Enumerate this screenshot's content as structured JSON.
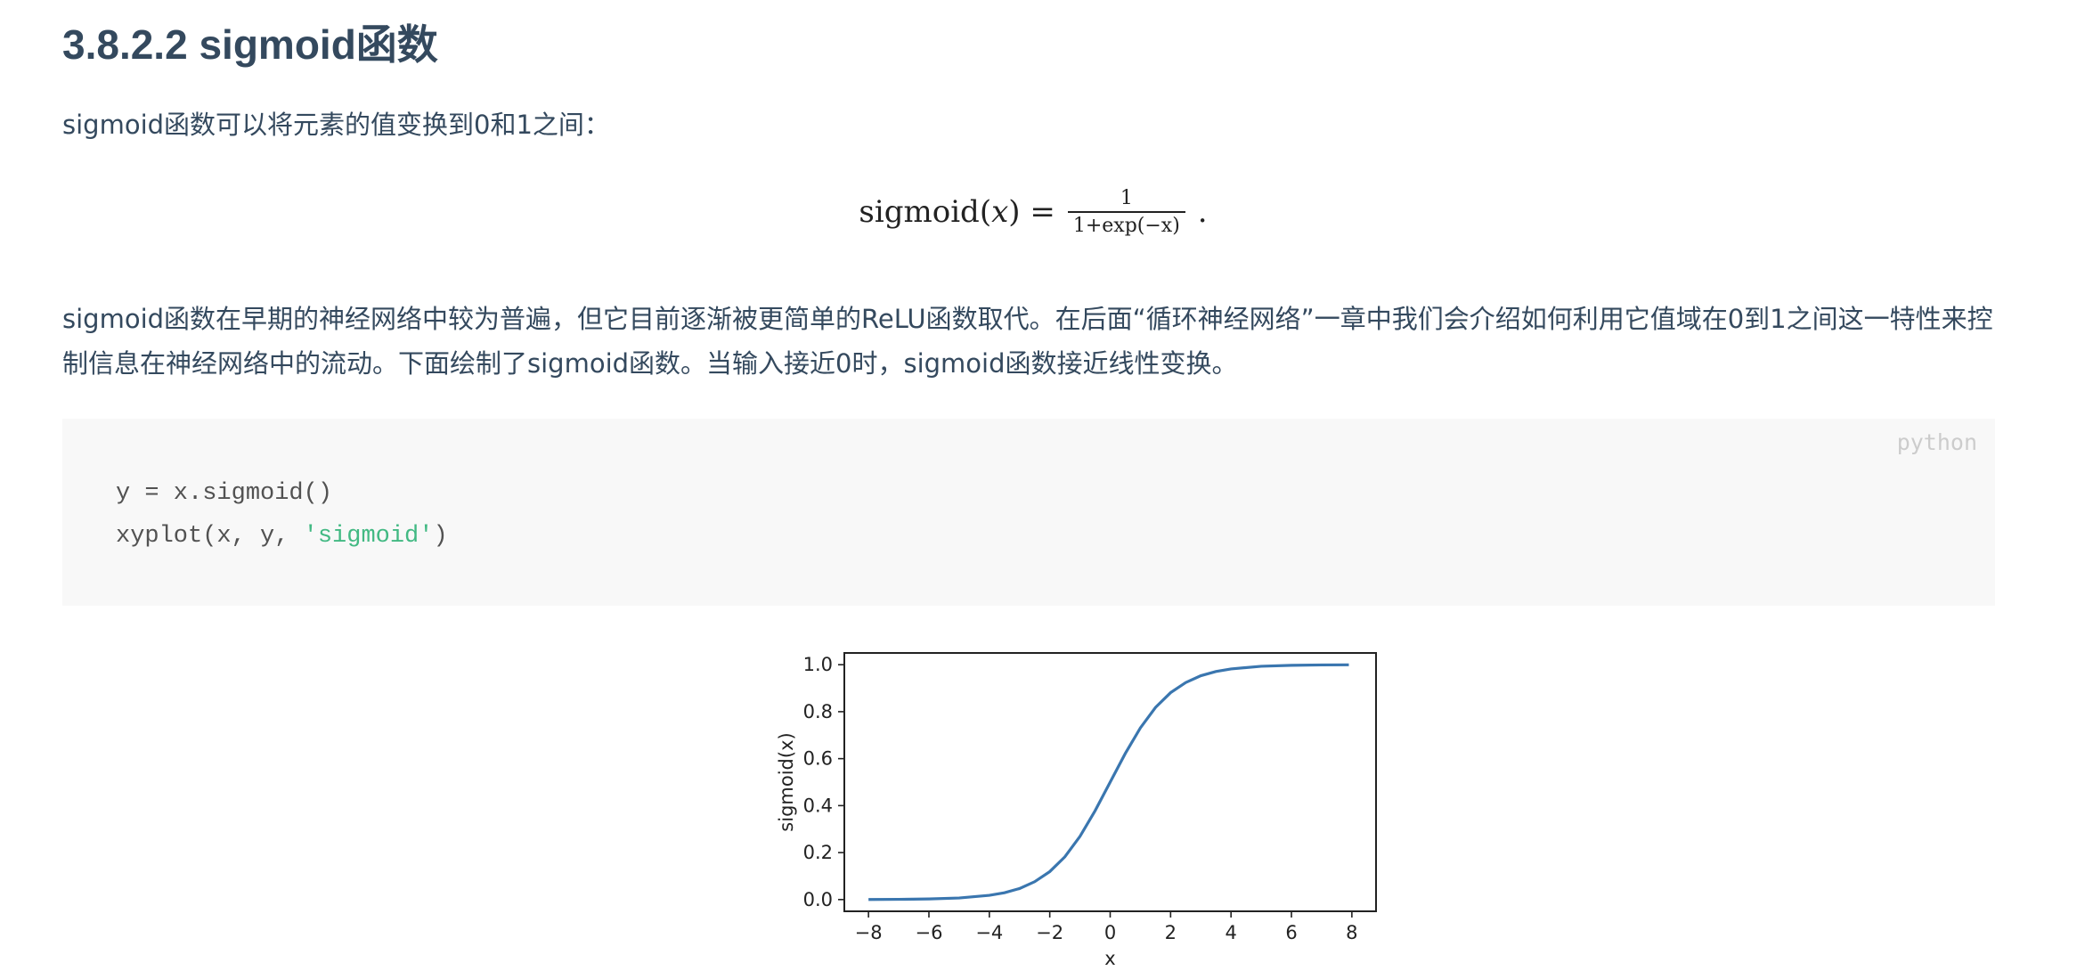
{
  "heading": "3.8.2.2 sigmoid函数",
  "intro": "sigmoid函数可以将元素的值变换到0和1之间：",
  "formula": {
    "lhs": "sigmoid(",
    "var": "x",
    "rhs_close": ") =",
    "num": "1",
    "den": "1+exp(−x)",
    "end": "."
  },
  "description": "sigmoid函数在早期的神经网络中较为普遍，但它目前逐渐被更简单的ReLU函数取代。在后面“循环神经网络”一章中我们会介绍如何利用它值域在0到1之间这一特性来控制信息在神经网络中的流动。下面绘制了sigmoid函数。当输入接近0时，sigmoid函数接近线性变换。",
  "code": {
    "language": "python",
    "line1": "y = x.sigmoid()",
    "line2_prefix": "xyplot(x, y, ",
    "line2_string": "'sigmoid'",
    "line2_suffix": ")"
  },
  "chart_data": {
    "type": "line",
    "function": "sigmoid",
    "xlabel": "x",
    "ylabel": "sigmoid(x)",
    "xlim": [
      -8.8,
      8.8
    ],
    "ylim": [
      -0.05,
      1.05
    ],
    "x_ticks": [
      -8,
      -6,
      -4,
      -2,
      0,
      2,
      4,
      6,
      8
    ],
    "x_tick_labels": [
      "−8",
      "−6",
      "−4",
      "−2",
      "0",
      "2",
      "4",
      "6",
      "8"
    ],
    "y_ticks": [
      0.0,
      0.2,
      0.4,
      0.6,
      0.8,
      1.0
    ],
    "y_tick_labels": [
      "0.0",
      "0.2",
      "0.4",
      "0.6",
      "0.8",
      "1.0"
    ],
    "x": [
      -8.0,
      -7.0,
      -6.0,
      -5.0,
      -4.0,
      -3.5,
      -3.0,
      -2.5,
      -2.0,
      -1.5,
      -1.0,
      -0.5,
      0.0,
      0.5,
      1.0,
      1.5,
      2.0,
      2.5,
      3.0,
      3.5,
      4.0,
      5.0,
      6.0,
      7.0,
      7.9
    ],
    "y": [
      0.0003,
      0.0009,
      0.0025,
      0.0067,
      0.018,
      0.029,
      0.047,
      0.076,
      0.119,
      0.182,
      0.269,
      0.378,
      0.5,
      0.622,
      0.731,
      0.818,
      0.881,
      0.924,
      0.953,
      0.971,
      0.982,
      0.9933,
      0.9975,
      0.9991,
      0.9996
    ],
    "line_color": "#3a76af",
    "grid": false
  }
}
